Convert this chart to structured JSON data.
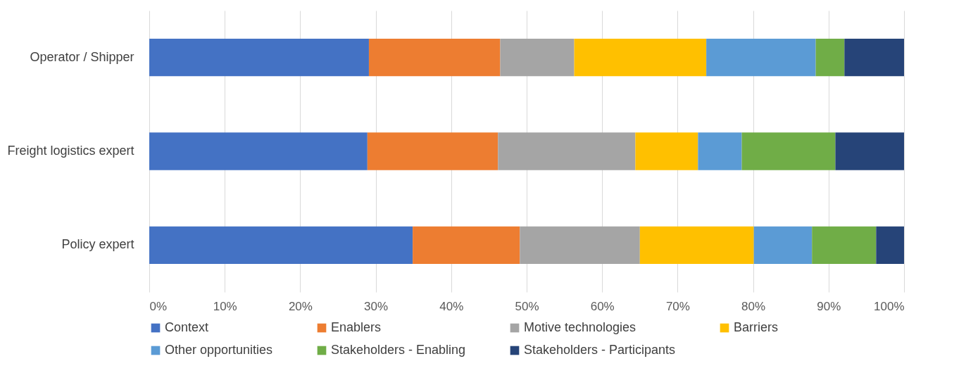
{
  "chart_data": {
    "type": "bar",
    "orientation": "horizontal",
    "stacked": true,
    "categories": [
      "Operator / Shipper",
      "Freight logistics expert",
      "Policy expert"
    ],
    "series": [
      {
        "name": "Context",
        "color": "#4472c4",
        "values": [
          29.1,
          28.9,
          34.9
        ]
      },
      {
        "name": "Enablers",
        "color": "#ed7d31",
        "values": [
          17.4,
          17.3,
          14.2
        ]
      },
      {
        "name": "Motive technologies",
        "color": "#a5a5a5",
        "values": [
          9.8,
          18.2,
          15.9
        ]
      },
      {
        "name": "Barriers",
        "color": "#ffc000",
        "values": [
          17.5,
          8.3,
          15.1
        ]
      },
      {
        "name": "Other opportunities",
        "color": "#5b9bd5",
        "values": [
          14.5,
          5.8,
          7.7
        ]
      },
      {
        "name": "Stakeholders - Enabling",
        "color": "#70ad47",
        "values": [
          3.8,
          12.4,
          8.5
        ]
      },
      {
        "name": "Stakeholders - Participants",
        "color": "#264478",
        "values": [
          7.9,
          9.1,
          3.7
        ]
      }
    ],
    "xlim": [
      0,
      100
    ],
    "xticks": [
      {
        "value": 0,
        "label": "0%"
      },
      {
        "value": 10,
        "label": "10%"
      },
      {
        "value": 20,
        "label": "20%"
      },
      {
        "value": 30,
        "label": "30%"
      },
      {
        "value": 40,
        "label": "40%"
      },
      {
        "value": 50,
        "label": "50%"
      },
      {
        "value": 60,
        "label": "60%"
      },
      {
        "value": 70,
        "label": "70%"
      },
      {
        "value": 80,
        "label": "80%"
      },
      {
        "value": 90,
        "label": "90%"
      },
      {
        "value": 100,
        "label": "100%"
      }
    ],
    "grid": "x",
    "legend": "bottom"
  }
}
